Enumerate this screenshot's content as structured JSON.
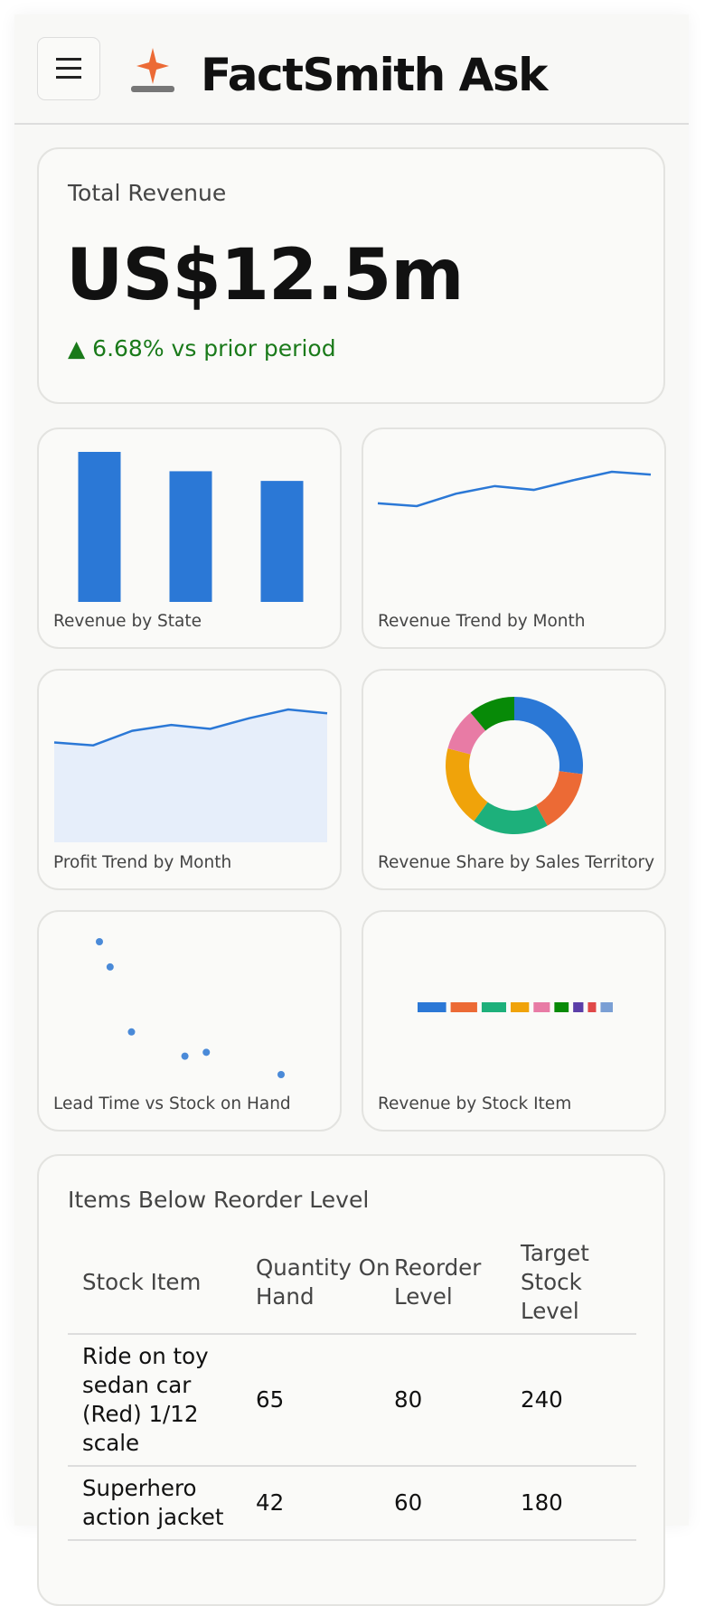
{
  "header": {
    "title": "FactSmith Ask"
  },
  "kpi": {
    "label": "Total Revenue",
    "value": "US$12.5m",
    "change": "▲ 6.68% vs prior period"
  },
  "chart_data": [
    {
      "type": "bar",
      "title": "Revenue by State",
      "values": [
        155,
        135,
        125
      ],
      "color": "#2b78d6"
    },
    {
      "type": "line",
      "title": "Revenue Trend by Month",
      "values": [
        1.0,
        0.97,
        1.1,
        1.18,
        1.14,
        1.24,
        1.33,
        1.3
      ],
      "color": "#2b78d6"
    },
    {
      "type": "area",
      "title": "Profit Trend by Month",
      "values": [
        103,
        100,
        115,
        121,
        117,
        128,
        137,
        133
      ],
      "color": "#2b78d6",
      "fill": "#e6eefa"
    },
    {
      "type": "pie",
      "title": "Revenue Share by Sales Territory",
      "values": [
        27,
        15,
        18,
        19,
        10,
        11
      ],
      "colors": [
        "#2b78d6",
        "#ec6a35",
        "#1db07b",
        "#f0a30a",
        "#e87ba5",
        "#078a07"
      ]
    },
    {
      "type": "scatter",
      "title": "Lead Time vs Stock on Hand",
      "x": [
        5,
        6,
        8,
        13,
        15,
        22
      ],
      "y": [
        137,
        111,
        44,
        19,
        23,
        0
      ],
      "color": "#4a8ad8"
    },
    {
      "type": "stacked-bar",
      "title": "Revenue by Stock Item",
      "values": [
        28,
        26,
        24,
        18,
        16,
        14,
        10,
        8,
        12
      ],
      "colors": [
        "#2b78d6",
        "#ec6a35",
        "#1db07b",
        "#f0a30a",
        "#e87ba5",
        "#078a07",
        "#5b3ea8",
        "#e04848",
        "#7a9fd4"
      ]
    }
  ],
  "table": {
    "title": "Items Below Reorder Level",
    "columns": [
      "Stock Item",
      "Quantity On Hand",
      "Reorder Level",
      "Target Stock Level"
    ],
    "rows": [
      [
        "Ride on toy sedan car (Red) 1/12 scale",
        65,
        80,
        240
      ],
      [
        "Superhero action jacket",
        42,
        60,
        180
      ]
    ]
  }
}
